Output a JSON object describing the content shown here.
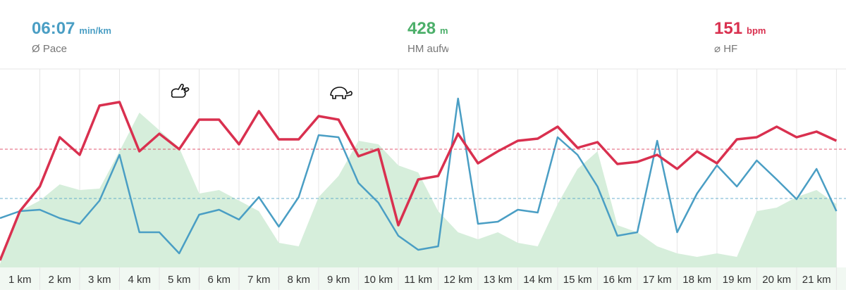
{
  "stats": [
    {
      "value": "06:07",
      "unit": "min/km",
      "label": "Ø Pace",
      "color": "#4a9ec4"
    },
    {
      "value": 428,
      "unit": "m",
      "label": "HM aufw",
      "color": "#4caf6a"
    },
    {
      "value": 151,
      "unit": "bpm",
      "label": "⌀ HF",
      "color": "#d9304f"
    }
  ],
  "chart_data": {
    "type": "line",
    "x": [
      0.5,
      1,
      1.5,
      2,
      2.5,
      3,
      3.5,
      4,
      4.5,
      5,
      5.5,
      6,
      6.5,
      7,
      7.5,
      8,
      8.5,
      9,
      9.5,
      10,
      10.5,
      11,
      11.5,
      12,
      12.5,
      13,
      13.5,
      14,
      14.5,
      15,
      15.5,
      16,
      16.5,
      17,
      17.5,
      18,
      18.5,
      19,
      19.5,
      20,
      20.5,
      21,
      21.5
    ],
    "xlim": [
      0.5,
      21.74
    ],
    "ylim": [
      0,
      282
    ],
    "xticks": [
      {
        "value": 1,
        "label": "1 km"
      },
      {
        "value": 2,
        "label": "2 km"
      },
      {
        "value": 3,
        "label": "3 km"
      },
      {
        "value": 4,
        "label": "4 km"
      },
      {
        "value": 5,
        "label": "5 km"
      },
      {
        "value": 6,
        "label": "6 km"
      },
      {
        "value": 7,
        "label": "7 km"
      },
      {
        "value": 8,
        "label": "8 km"
      },
      {
        "value": 9,
        "label": "9 km"
      },
      {
        "value": 10,
        "label": "10 km"
      },
      {
        "value": 11,
        "label": "11 km"
      },
      {
        "value": 12,
        "label": "12 km"
      },
      {
        "value": 13,
        "label": "13 km"
      },
      {
        "value": 14,
        "label": "14 km"
      },
      {
        "value": 15,
        "label": "15 km"
      },
      {
        "value": 16,
        "label": "16 km"
      },
      {
        "value": 17,
        "label": "17 km"
      },
      {
        "value": 18,
        "label": "18 km"
      },
      {
        "value": 19,
        "label": "19 km"
      },
      {
        "value": 20,
        "label": "20 km"
      },
      {
        "value": 21,
        "label": "21 km"
      }
    ],
    "grid": true,
    "series": [
      {
        "kind": "area",
        "color": "#d6eedb",
        "values": [
          5,
          80,
          95,
          118,
          110,
          112,
          165,
          220,
          195,
          170,
          105,
          110,
          95,
          80,
          35,
          30,
          100,
          130,
          180,
          175,
          145,
          135,
          80,
          50,
          40,
          50,
          35,
          30,
          90,
          140,
          165,
          60,
          50,
          30,
          20,
          15,
          20,
          15,
          80,
          85,
          100,
          110,
          90
        ]
      },
      {
        "kind": "line",
        "color": "#4a9ec4",
        "mean": 98,
        "values": [
          70,
          80,
          82,
          70,
          62,
          95,
          160,
          50,
          50,
          20,
          75,
          82,
          68,
          100,
          58,
          100,
          188,
          185,
          120,
          92,
          45,
          25,
          30,
          240,
          62,
          65,
          82,
          78,
          185,
          160,
          115,
          45,
          50,
          180,
          50,
          105,
          145,
          115,
          152,
          125,
          97,
          140,
          80
        ]
      },
      {
        "kind": "line",
        "color": "#d9304f",
        "mean": 168,
        "values": [
          10,
          80,
          115,
          185,
          160,
          230,
          235,
          165,
          190,
          168,
          210,
          210,
          175,
          222,
          182,
          182,
          215,
          210,
          158,
          168,
          60,
          125,
          130,
          190,
          148,
          165,
          180,
          183,
          200,
          170,
          178,
          147,
          150,
          160,
          140,
          165,
          148,
          182,
          185,
          200,
          185,
          193,
          180
        ]
      }
    ]
  }
}
